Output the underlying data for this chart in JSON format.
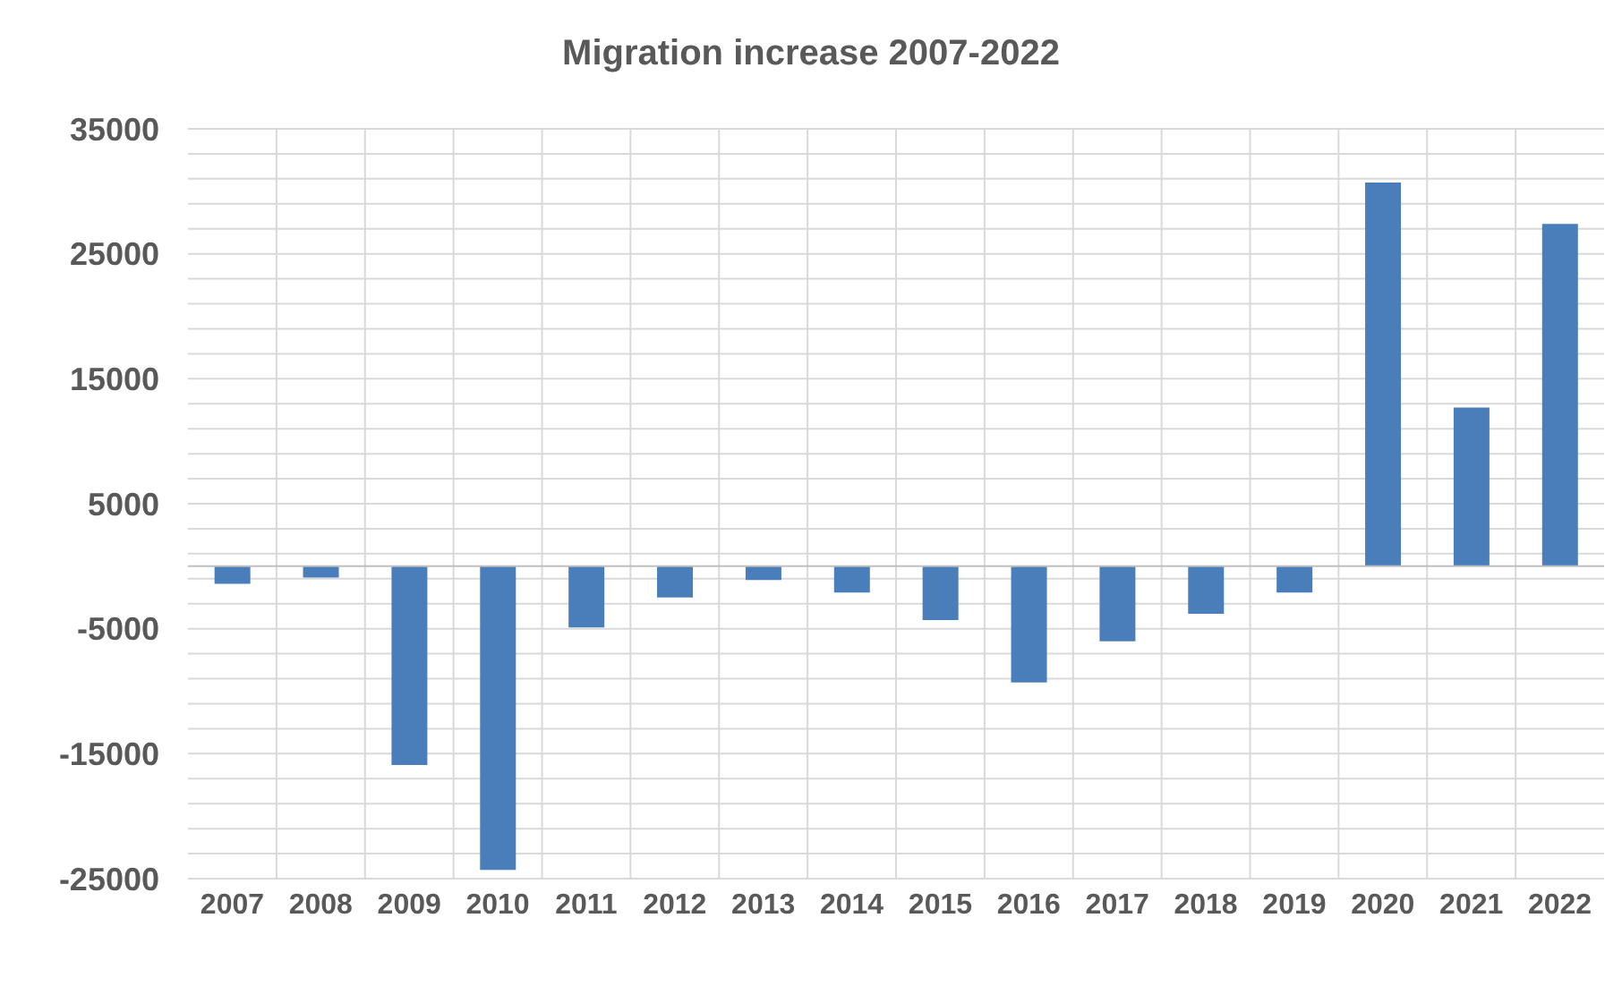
{
  "chart_data": {
    "type": "bar",
    "title": "Migration increase 2007-2022",
    "categories": [
      "2007",
      "2008",
      "2009",
      "2010",
      "2011",
      "2012",
      "2013",
      "2014",
      "2015",
      "2016",
      "2017",
      "2018",
      "2019",
      "2020",
      "2021",
      "2022"
    ],
    "values": [
      -1400,
      -900,
      -15900,
      -24300,
      -4900,
      -2500,
      -1100,
      -2100,
      -4300,
      -9300,
      -6000,
      -3800,
      -2100,
      30700,
      12700,
      27400
    ],
    "color": "#4a7ebb",
    "ylim": [
      -25000,
      35000
    ],
    "yticks": [
      -25000,
      {
        "value": -23000,
        "label": null
      },
      {
        "value": -21000,
        "label": null
      },
      {
        "value": -19000,
        "label": null
      },
      {
        "value": -17000,
        "label": null
      },
      -15000,
      {
        "value": -13000,
        "label": null
      },
      {
        "value": -11000,
        "label": null
      },
      {
        "value": -9000,
        "label": null
      },
      {
        "value": -7000,
        "label": null
      },
      -5000,
      {
        "value": -3000,
        "label": null
      },
      {
        "value": -1000,
        "label": null
      },
      {
        "value": 1000,
        "label": null
      },
      {
        "value": 3000,
        "label": null
      },
      5000,
      {
        "value": 7000,
        "label": null
      },
      {
        "value": 9000,
        "label": null
      },
      {
        "value": 11000,
        "label": null
      },
      {
        "value": 13000,
        "label": null
      },
      15000,
      {
        "value": 17000,
        "label": null
      },
      {
        "value": 19000,
        "label": null
      },
      {
        "value": 21000,
        "label": null
      },
      {
        "value": 23000,
        "label": null
      },
      25000,
      {
        "value": 27000,
        "label": null
      },
      {
        "value": 29000,
        "label": null
      },
      {
        "value": 31000,
        "label": null
      },
      {
        "value": 33000,
        "label": null
      },
      35000
    ],
    "grid": true
  }
}
